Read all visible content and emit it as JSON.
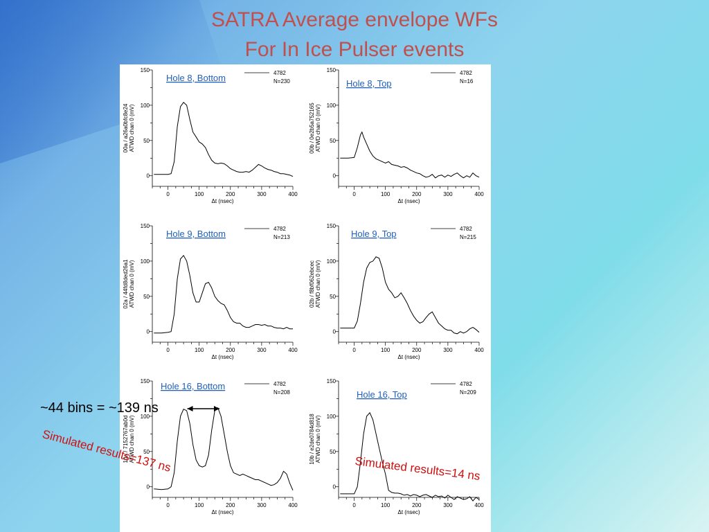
{
  "slide": {
    "title_line1": "SATRA Average envelope WFs",
    "title_line2": "For In Ice Pulser events",
    "annotation_bins": "~44 bins = ~139 ns",
    "annotation_sim_left": "Simulated results=137 ns",
    "annotation_sim_right": "Simulated results=14 ns"
  },
  "colors": {
    "title": "#c0504d",
    "panel_label": "#1f5fbf",
    "sim_text": "#d01010",
    "trace": "#000000"
  },
  "chart_data": [
    {
      "type": "line",
      "label": "Hole 8, Bottom",
      "ylabel": "00a / a26a0bfc8e24\nATWD chan 0 (mV)",
      "xlabel": "Δt (nsec)",
      "legend": [
        "4782",
        "N=230"
      ],
      "xlim": [
        -50,
        400
      ],
      "ylim": [
        -15,
        150
      ],
      "xticks": [
        0,
        100,
        200,
        300,
        400
      ],
      "yticks": [
        0,
        50,
        100,
        150
      ],
      "x": [
        -45,
        -20,
        0,
        10,
        20,
        30,
        40,
        50,
        60,
        70,
        80,
        90,
        100,
        110,
        120,
        130,
        140,
        150,
        160,
        170,
        180,
        190,
        200,
        210,
        220,
        230,
        240,
        250,
        260,
        270,
        280,
        290,
        300,
        310,
        320,
        330,
        340,
        350,
        360,
        370,
        380,
        390,
        400
      ],
      "y": [
        2,
        2,
        2,
        3,
        20,
        70,
        98,
        104,
        100,
        80,
        62,
        55,
        48,
        45,
        40,
        30,
        22,
        18,
        17,
        18,
        17,
        14,
        10,
        8,
        6,
        5,
        5,
        6,
        5,
        8,
        12,
        16,
        14,
        11,
        9,
        8,
        6,
        5,
        3,
        3,
        2,
        1,
        -1
      ]
    },
    {
      "type": "line",
      "label": "Hole 8, Top",
      "ylabel": "00b / 0e2b5a752165\nATWD chan 0 (mV)",
      "xlabel": "Δt (nsec)",
      "legend": [
        "4782",
        "N=16"
      ],
      "xlim": [
        -50,
        400
      ],
      "ylim": [
        -15,
        150
      ],
      "xticks": [
        0,
        100,
        200,
        300,
        400
      ],
      "yticks": [
        0,
        50,
        100,
        150
      ],
      "x": [
        -45,
        -20,
        0,
        10,
        20,
        25,
        30,
        40,
        50,
        60,
        70,
        80,
        90,
        100,
        110,
        120,
        130,
        140,
        150,
        160,
        170,
        180,
        190,
        200,
        210,
        220,
        230,
        240,
        250,
        260,
        270,
        280,
        290,
        300,
        310,
        320,
        330,
        340,
        350,
        360,
        370,
        380,
        390,
        400
      ],
      "y": [
        25,
        25,
        26,
        40,
        58,
        62,
        55,
        45,
        35,
        28,
        24,
        22,
        20,
        18,
        20,
        16,
        15,
        14,
        12,
        13,
        11,
        8,
        6,
        4,
        3,
        0,
        -2,
        -1,
        2,
        -3,
        0,
        1,
        -2,
        1,
        -1,
        2,
        4,
        0,
        -3,
        0,
        -2,
        4,
        0,
        -2
      ]
    },
    {
      "type": "line",
      "label": "Hole 9, Bottom",
      "ylabel": "02a / 44fd8ded26a1\nATWD chan 0 (mV)",
      "xlabel": "Δt (nsec)",
      "legend": [
        "4782",
        "N=213"
      ],
      "xlim": [
        -50,
        400
      ],
      "ylim": [
        -15,
        150
      ],
      "xticks": [
        0,
        100,
        200,
        300,
        400
      ],
      "yticks": [
        0,
        50,
        100,
        150
      ],
      "x": [
        -45,
        -20,
        0,
        10,
        20,
        30,
        40,
        50,
        60,
        70,
        80,
        90,
        100,
        110,
        120,
        130,
        140,
        150,
        160,
        170,
        180,
        190,
        200,
        210,
        220,
        230,
        240,
        250,
        260,
        270,
        280,
        290,
        300,
        310,
        320,
        330,
        340,
        350,
        360,
        370,
        380,
        390,
        400
      ],
      "y": [
        -2,
        -2,
        -1,
        0,
        25,
        75,
        103,
        108,
        100,
        80,
        55,
        42,
        42,
        55,
        68,
        70,
        62,
        50,
        44,
        40,
        38,
        30,
        20,
        14,
        12,
        12,
        8,
        6,
        6,
        8,
        10,
        10,
        9,
        10,
        8,
        8,
        6,
        5,
        5,
        4,
        6,
        4,
        4
      ]
    },
    {
      "type": "line",
      "label": "Hole 9, Top",
      "ylabel": "02b / f8bf062ebcec\nATWD chan 0 (mV)",
      "xlabel": "Δt (nsec)",
      "legend": [
        "4782",
        "N=215"
      ],
      "xlim": [
        -50,
        400
      ],
      "ylim": [
        -15,
        150
      ],
      "xticks": [
        0,
        100,
        200,
        300,
        400
      ],
      "yticks": [
        0,
        50,
        100,
        150
      ],
      "x": [
        -45,
        -20,
        0,
        10,
        20,
        30,
        40,
        50,
        60,
        70,
        80,
        90,
        100,
        110,
        120,
        130,
        140,
        150,
        160,
        170,
        180,
        190,
        200,
        210,
        220,
        230,
        240,
        250,
        260,
        270,
        280,
        290,
        300,
        310,
        320,
        330,
        340,
        350,
        360,
        370,
        380,
        390,
        400
      ],
      "y": [
        5,
        5,
        5,
        15,
        40,
        70,
        90,
        98,
        100,
        106,
        104,
        90,
        70,
        60,
        55,
        48,
        50,
        55,
        48,
        40,
        30,
        22,
        16,
        12,
        14,
        20,
        25,
        28,
        20,
        12,
        8,
        4,
        2,
        2,
        -2,
        -3,
        0,
        -2,
        0,
        4,
        6,
        3,
        -1
      ]
    },
    {
      "type": "line",
      "label": "Hole 16, Bottom",
      "ylabel": "10a / 7152767ab0d\nATWD chan 0 (mV)",
      "xlabel": "Δt (nsec)",
      "legend": [
        "4782",
        "N=208"
      ],
      "xlim": [
        -50,
        400
      ],
      "ylim": [
        -15,
        150
      ],
      "xticks": [
        0,
        100,
        200,
        300,
        400
      ],
      "yticks": [
        0,
        50,
        100,
        150
      ],
      "x": [
        -45,
        -20,
        0,
        10,
        20,
        30,
        40,
        50,
        60,
        70,
        80,
        90,
        100,
        110,
        120,
        130,
        140,
        150,
        160,
        170,
        180,
        190,
        200,
        210,
        220,
        230,
        240,
        250,
        260,
        270,
        280,
        290,
        300,
        310,
        320,
        330,
        340,
        350,
        360,
        370,
        380,
        390,
        400
      ],
      "y": [
        -3,
        -4,
        -3,
        0,
        20,
        65,
        100,
        110,
        108,
        90,
        60,
        38,
        30,
        28,
        30,
        45,
        80,
        108,
        112,
        100,
        75,
        50,
        30,
        20,
        18,
        16,
        18,
        16,
        14,
        12,
        10,
        10,
        8,
        6,
        4,
        2,
        3,
        6,
        12,
        22,
        18,
        5,
        -5
      ]
    },
    {
      "type": "line",
      "label": "Hole 16, Top",
      "ylabel": "10b / e2de0784d818\nATWD chan 0 (mV)",
      "xlabel": "Δt (nsec)",
      "legend": [
        "4782",
        "N=209"
      ],
      "xlim": [
        -50,
        400
      ],
      "ylim": [
        -15,
        150
      ],
      "xticks": [
        0,
        100,
        200,
        300,
        400
      ],
      "yticks": [
        0,
        50,
        100,
        150
      ],
      "x": [
        -45,
        -20,
        0,
        10,
        20,
        30,
        40,
        50,
        60,
        70,
        80,
        90,
        100,
        110,
        120,
        130,
        140,
        150,
        160,
        170,
        180,
        190,
        200,
        210,
        220,
        230,
        240,
        250,
        260,
        270,
        280,
        290,
        300,
        310,
        320,
        330,
        340,
        350,
        360,
        370,
        380,
        390,
        400
      ],
      "y": [
        -10,
        -10,
        -10,
        0,
        35,
        75,
        100,
        105,
        95,
        75,
        55,
        35,
        18,
        -5,
        -8,
        -9,
        -9,
        -10,
        -12,
        -11,
        -13,
        -11,
        -12,
        -14,
        -12,
        -11,
        -13,
        -15,
        -12,
        -14,
        -13,
        -16,
        -12,
        -15,
        -18,
        -14,
        -16,
        -18,
        -17,
        -14,
        -20,
        -15,
        -18
      ]
    }
  ]
}
